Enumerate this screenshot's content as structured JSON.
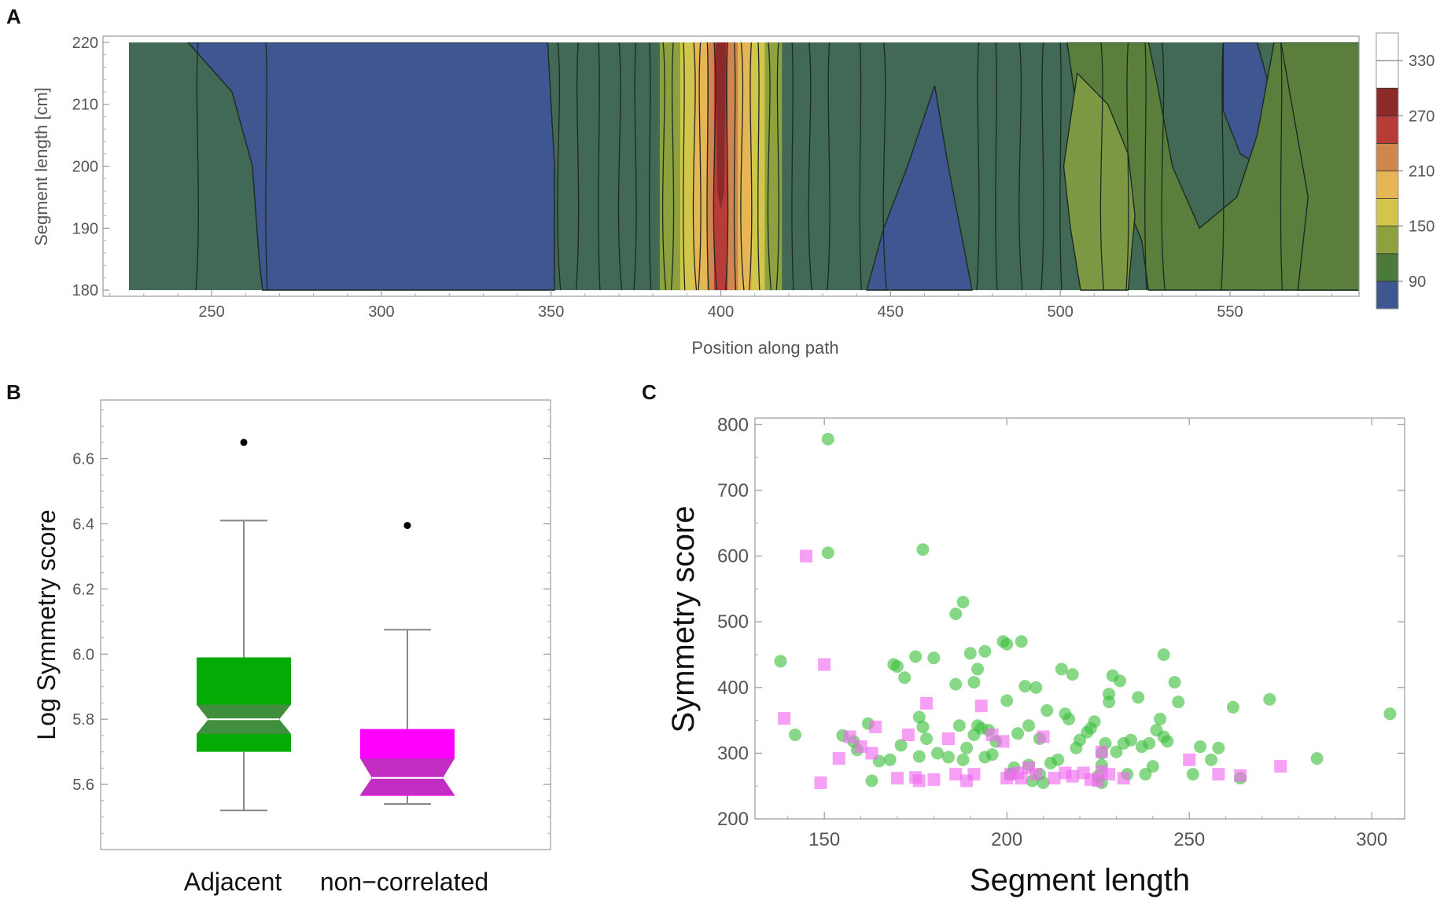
{
  "panels": {
    "A": {
      "letter": "A"
    },
    "B": {
      "letter": "B"
    },
    "C": {
      "letter": "C"
    }
  },
  "chart_data": [
    {
      "panel": "A",
      "type": "heatmap",
      "subtype": "contour",
      "xlabel": "Position along path",
      "ylabel": "Segment length [cm]",
      "xlim": [
        218,
        588
      ],
      "ylim": [
        179,
        221
      ],
      "x_ticks": [
        250,
        300,
        350,
        400,
        450,
        500,
        550
      ],
      "y_ticks": [
        180,
        190,
        200,
        210,
        220
      ],
      "colorbar": {
        "ticks": [
          90,
          150,
          210,
          270,
          330
        ],
        "range": [
          60,
          360
        ],
        "levels": [
          {
            "from": 60,
            "to": 90,
            "color": "#3f5690"
          },
          {
            "from": 90,
            "to": 120,
            "color": "#4c7a3a"
          },
          {
            "from": 120,
            "to": 150,
            "color": "#8da23e"
          },
          {
            "from": 150,
            "to": 180,
            "color": "#d2c64a"
          },
          {
            "from": 180,
            "to": 210,
            "color": "#e6b554"
          },
          {
            "from": 210,
            "to": 240,
            "color": "#d0874e"
          },
          {
            "from": 240,
            "to": 270,
            "color": "#b73c38"
          },
          {
            "from": 270,
            "to": 300,
            "color": "#8c2a2a"
          },
          {
            "from": 300,
            "to": 330,
            "color": "#ffffff"
          },
          {
            "from": 330,
            "to": 360,
            "color": "#ffffff"
          }
        ]
      },
      "colors": {
        "base": "#426856",
        "low": "#3f5690",
        "mid_green": "#5a7f3c",
        "olive": "#7c9843"
      },
      "regions": [
        {
          "name": "low-region-left",
          "level": "low",
          "points": [
            [
              243,
              220
            ],
            [
              256,
              212
            ],
            [
              262,
              200
            ],
            [
              264,
              185
            ],
            [
              265,
              180
            ],
            [
              351,
              180
            ],
            [
              351,
              200
            ],
            [
              349,
              220
            ]
          ]
        },
        {
          "name": "low-region-middle",
          "level": "low",
          "points": [
            [
              463,
              213
            ],
            [
              455,
              200
            ],
            [
              448,
              190
            ],
            [
              443,
              180
            ],
            [
              474,
              180
            ],
            [
              467,
              200
            ]
          ]
        },
        {
          "name": "low-region-right",
          "level": "low",
          "points": [
            [
              548,
              220
            ],
            [
              548,
              209
            ],
            [
              553,
              202
            ],
            [
              559,
              200
            ],
            [
              564,
              208
            ],
            [
              558,
              220
            ]
          ]
        },
        {
          "name": "green-region-right",
          "level": "mid_green",
          "points": [
            [
              502,
              220
            ],
            [
              506,
              205
            ],
            [
              515,
              200
            ],
            [
              524,
              188
            ],
            [
              526,
              180
            ],
            [
              588,
              180
            ],
            [
              588,
              220
            ],
            [
              563,
              220
            ],
            [
              558,
              205
            ],
            [
              552,
              195
            ],
            [
              541,
              190
            ],
            [
              533,
              200
            ],
            [
              529,
              212
            ],
            [
              526,
              220
            ]
          ]
        },
        {
          "name": "green-region-far-right",
          "level": "mid_green",
          "points": [
            [
              565,
              220
            ],
            [
              588,
              220
            ],
            [
              588,
              180
            ],
            [
              570,
              180
            ],
            [
              573,
              195
            ]
          ]
        },
        {
          "name": "olive-region",
          "level": "olive",
          "points": [
            [
              505,
              215
            ],
            [
              501,
              200
            ],
            [
              503,
              190
            ],
            [
              506,
              180
            ],
            [
              520,
              180
            ],
            [
              522,
              192
            ],
            [
              520,
              202
            ],
            [
              514,
              210
            ]
          ]
        }
      ],
      "band": {
        "name": "peak-band",
        "center_x": 400,
        "strips": [
          {
            "x0": 382,
            "x1": 388,
            "color": "#8da23e"
          },
          {
            "x0": 388,
            "x1": 392,
            "color": "#d2c64a"
          },
          {
            "x0": 392,
            "x1": 396,
            "color": "#e6b554"
          },
          {
            "x0": 396,
            "x1": 398,
            "color": "#d0874e"
          },
          {
            "x0": 398,
            "x1": 402,
            "color": "#b73c38"
          },
          {
            "x0": 402,
            "x1": 405,
            "color": "#d0874e"
          },
          {
            "x0": 405,
            "x1": 409,
            "color": "#e6b554"
          },
          {
            "x0": 409,
            "x1": 413,
            "color": "#d2c64a"
          },
          {
            "x0": 413,
            "x1": 418,
            "color": "#8da23e"
          }
        ],
        "peak": {
          "x": 400,
          "ymin": 193,
          "ymax": 220,
          "color": "#8c2a2a"
        }
      },
      "contour_lines_x": [
        221,
        246,
        266,
        352,
        358,
        364,
        370,
        375,
        379,
        383,
        386,
        389,
        392,
        394,
        396,
        398,
        402,
        404,
        406,
        409,
        411,
        414,
        417,
        421,
        426,
        432,
        441,
        448,
        476,
        481,
        488,
        495,
        500,
        512,
        520,
        525,
        530,
        548,
        565
      ]
    },
    {
      "panel": "B",
      "type": "box",
      "ylabel": "Log Symmetry score",
      "ylim": [
        5.4,
        6.78
      ],
      "y_ticks": [
        5.6,
        5.8,
        6.0,
        6.2,
        6.4,
        6.6
      ],
      "categories": [
        "Adjacent",
        "non−correlated"
      ],
      "boxes": [
        {
          "label": "Adjacent",
          "color": "#05ab05",
          "notch_color": "#3f8f3f",
          "whisker_low": 5.52,
          "q1": 5.7,
          "median": 5.8,
          "q3": 5.99,
          "whisker_high": 6.41,
          "notch_low": 5.755,
          "notch_high": 5.845,
          "outliers": [
            6.65
          ]
        },
        {
          "label": "non−correlated",
          "color": "#ff00ff",
          "notch_color": "#c22dc2",
          "whisker_low": 5.54,
          "q1": 5.565,
          "median": 5.62,
          "q3": 5.77,
          "whisker_high": 6.075,
          "notch_low": 5.567,
          "notch_high": 5.68,
          "outliers": [
            6.395
          ]
        }
      ]
    },
    {
      "panel": "C",
      "type": "scatter",
      "xlabel": "Segment length",
      "ylabel": "Symmetry score",
      "xlim": [
        131,
        309
      ],
      "ylim": [
        200,
        810
      ],
      "x_ticks": [
        150,
        200,
        250,
        300
      ],
      "y_ticks": [
        200,
        300,
        400,
        500,
        600,
        700,
        800
      ],
      "series": [
        {
          "name": "Adjacent",
          "marker": "circle",
          "color": "#3cbf3c",
          "points": [
            [
              138,
              440
            ],
            [
              142,
              328
            ],
            [
              151,
              778
            ],
            [
              151,
              605
            ],
            [
              155,
              327
            ],
            [
              158,
              318
            ],
            [
              159,
              305
            ],
            [
              162,
              345
            ],
            [
              163,
              258
            ],
            [
              165,
              288
            ],
            [
              168,
              290
            ],
            [
              169,
              435
            ],
            [
              170,
              432
            ],
            [
              171,
              312
            ],
            [
              172,
              415
            ],
            [
              175,
              447
            ],
            [
              176,
              295
            ],
            [
              176,
              355
            ],
            [
              177,
              610
            ],
            [
              177,
              340
            ],
            [
              178,
              322
            ],
            [
              180,
              445
            ],
            [
              181,
              300
            ],
            [
              184,
              294
            ],
            [
              186,
              405
            ],
            [
              186,
              512
            ],
            [
              187,
              342
            ],
            [
              188,
              530
            ],
            [
              188,
              290
            ],
            [
              189,
              308
            ],
            [
              190,
              452
            ],
            [
              191,
              328
            ],
            [
              191,
              408
            ],
            [
              192,
              428
            ],
            [
              192,
              342
            ],
            [
              193,
              338
            ],
            [
              194,
              294
            ],
            [
              194,
              455
            ],
            [
              195,
              335
            ],
            [
              196,
              298
            ],
            [
              197,
              318
            ],
            [
              199,
              470
            ],
            [
              200,
              466
            ],
            [
              200,
              380
            ],
            [
              201,
              268
            ],
            [
              202,
              278
            ],
            [
              203,
              330
            ],
            [
              204,
              470
            ],
            [
              205,
              402
            ],
            [
              206,
              342
            ],
            [
              206,
              282
            ],
            [
              207,
              258
            ],
            [
              208,
              400
            ],
            [
              209,
              268
            ],
            [
              209,
              322
            ],
            [
              210,
              255
            ],
            [
              211,
              365
            ],
            [
              212,
              285
            ],
            [
              214,
              290
            ],
            [
              215,
              428
            ],
            [
              216,
              360
            ],
            [
              217,
              352
            ],
            [
              218,
              420
            ],
            [
              219,
              308
            ],
            [
              220,
              320
            ],
            [
              222,
              332
            ],
            [
              223,
              338
            ],
            [
              224,
              348
            ],
            [
              225,
              265
            ],
            [
              226,
              282
            ],
            [
              226,
              300
            ],
            [
              226,
              255
            ],
            [
              227,
              315
            ],
            [
              228,
              390
            ],
            [
              228,
              378
            ],
            [
              229,
              418
            ],
            [
              230,
              302
            ],
            [
              231,
              410
            ],
            [
              232,
              315
            ],
            [
              233,
              268
            ],
            [
              234,
              320
            ],
            [
              236,
              385
            ],
            [
              237,
              310
            ],
            [
              238,
              268
            ],
            [
              239,
              315
            ],
            [
              240,
              280
            ],
            [
              241,
              335
            ],
            [
              242,
              352
            ],
            [
              243,
              325
            ],
            [
              243,
              450
            ],
            [
              244,
              318
            ],
            [
              246,
              408
            ],
            [
              247,
              378
            ],
            [
              251,
              268
            ],
            [
              253,
              310
            ],
            [
              256,
              290
            ],
            [
              258,
              308
            ],
            [
              262,
              370
            ],
            [
              264,
              262
            ],
            [
              272,
              382
            ],
            [
              285,
              292
            ],
            [
              305,
              360
            ]
          ]
        },
        {
          "name": "non-correlated",
          "marker": "square",
          "color": "#f06cf0",
          "points": [
            [
              139,
              353
            ],
            [
              145,
              600
            ],
            [
              149,
              255
            ],
            [
              150,
              435
            ],
            [
              154,
              292
            ],
            [
              157,
              325
            ],
            [
              160,
              310
            ],
            [
              163,
              300
            ],
            [
              164,
              340
            ],
            [
              170,
              262
            ],
            [
              173,
              328
            ],
            [
              175,
              263
            ],
            [
              176,
              258
            ],
            [
              178,
              376
            ],
            [
              180,
              260
            ],
            [
              184,
              322
            ],
            [
              186,
              268
            ],
            [
              189,
              258
            ],
            [
              191,
              268
            ],
            [
              193,
              372
            ],
            [
              196,
              328
            ],
            [
              199,
              318
            ],
            [
              200,
              262
            ],
            [
              201,
              268
            ],
            [
              203,
              270
            ],
            [
              204,
              262
            ],
            [
              206,
              278
            ],
            [
              208,
              268
            ],
            [
              210,
              325
            ],
            [
              213,
              262
            ],
            [
              216,
              270
            ],
            [
              218,
              265
            ],
            [
              221,
              270
            ],
            [
              223,
              260
            ],
            [
              225,
              258
            ],
            [
              226,
              272
            ],
            [
              226,
              302
            ],
            [
              228,
              268
            ],
            [
              232,
              262
            ],
            [
              250,
              290
            ],
            [
              258,
              268
            ],
            [
              264,
              266
            ],
            [
              275,
              280
            ]
          ]
        }
      ]
    }
  ]
}
